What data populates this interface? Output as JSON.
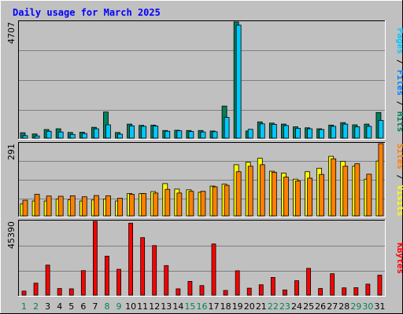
{
  "title": "Daily usage for March 2025",
  "colors": {
    "frame_bg": "#c0c0c0",
    "plot_bg": "#c0c0c0",
    "grid": "#7f7f7f",
    "title": "#0000ff",
    "hits": "#00805c",
    "files": "#00c8ff",
    "pages": "#00c8ff",
    "visits": "#ffff00",
    "sites": "#ff8000",
    "kbytes": "#ff0000",
    "weekday_tick": "#000000",
    "weekend_tick": "#00805c"
  },
  "chart_data": [
    {
      "type": "bar",
      "title": "Daily usage for March 2025",
      "categories": [
        "1",
        "2",
        "3",
        "4",
        "5",
        "6",
        "7",
        "8",
        "9",
        "10",
        "11",
        "12",
        "13",
        "14",
        "15",
        "16",
        "17",
        "18",
        "19",
        "20",
        "21",
        "22",
        "23",
        "24",
        "25",
        "26",
        "27",
        "28",
        "29",
        "30",
        "31"
      ],
      "weekend_days": [
        "1",
        "2",
        "8",
        "9",
        "15",
        "16",
        "22",
        "23",
        "29",
        "30"
      ],
      "ylabel_parts": [
        {
          "text": "Pages",
          "color": "#00c8ff"
        },
        {
          "text": " / ",
          "color": "#000000"
        },
        {
          "text": "Files",
          "color": "#0080ff"
        },
        {
          "text": " / ",
          "color": "#000000"
        },
        {
          "text": "Hits",
          "color": "#00805c"
        }
      ],
      "ymax_label": "4707",
      "ylim": [
        0,
        4707
      ],
      "series": [
        {
          "name": "Hits",
          "color": "#00805c",
          "values": [
            220,
            170,
            350,
            380,
            230,
            240,
            440,
            1060,
            230,
            570,
            520,
            530,
            310,
            320,
            310,
            310,
            290,
            1300,
            4707,
            290,
            660,
            610,
            570,
            460,
            420,
            380,
            530,
            630,
            540,
            570,
            1040
          ]
        },
        {
          "name": "Files",
          "color": "#00c8ff",
          "values": [
            100,
            90,
            280,
            250,
            150,
            190,
            380,
            540,
            160,
            500,
            480,
            490,
            280,
            300,
            270,
            250,
            260,
            840,
            4580,
            360,
            580,
            560,
            510,
            400,
            380,
            350,
            480,
            570,
            460,
            480,
            720
          ]
        },
        {
          "name": "Pages",
          "color": "#00c8ff",
          "values": [
            0,
            0,
            0,
            0,
            0,
            0,
            0,
            0,
            0,
            0,
            0,
            0,
            0,
            0,
            0,
            0,
            0,
            0,
            0,
            0,
            0,
            0,
            0,
            0,
            0,
            0,
            0,
            0,
            0,
            0,
            0
          ]
        }
      ]
    },
    {
      "type": "bar",
      "categories": [
        "1",
        "2",
        "3",
        "4",
        "5",
        "6",
        "7",
        "8",
        "9",
        "10",
        "11",
        "12",
        "13",
        "14",
        "15",
        "16",
        "17",
        "18",
        "19",
        "20",
        "21",
        "22",
        "23",
        "24",
        "25",
        "26",
        "27",
        "28",
        "29",
        "30",
        "31"
      ],
      "ylabel_parts": [
        {
          "text": "Sites",
          "color": "#ff8000"
        },
        {
          "text": " / ",
          "color": "#000000"
        },
        {
          "text": "Visits",
          "color": "#ffff00"
        }
      ],
      "ymax_label": "291",
      "ylim": [
        0,
        291
      ],
      "series": [
        {
          "name": "Visits",
          "color": "#ffff00",
          "values": [
            48,
            60,
            60,
            68,
            65,
            60,
            64,
            68,
            60,
            90,
            90,
            98,
            130,
            108,
            105,
            95,
            120,
            128,
            206,
            216,
            232,
            180,
            172,
            148,
            178,
            192,
            240,
            220,
            200,
            148,
            221
          ]
        },
        {
          "name": "Sites",
          "color": "#ff8000",
          "values": [
            63,
            87,
            80,
            79,
            81,
            77,
            82,
            81,
            71,
            87,
            90,
            92,
            107,
            92,
            99,
            99,
            117,
            123,
            178,
            200,
            206,
            176,
            156,
            141,
            152,
            167,
            230,
            200,
            210,
            168,
            291
          ]
        }
      ]
    },
    {
      "type": "bar",
      "categories": [
        "1",
        "2",
        "3",
        "4",
        "5",
        "6",
        "7",
        "8",
        "9",
        "10",
        "11",
        "12",
        "13",
        "14",
        "15",
        "16",
        "17",
        "18",
        "19",
        "20",
        "21",
        "22",
        "23",
        "24",
        "25",
        "26",
        "27",
        "28",
        "29",
        "30",
        "31"
      ],
      "ylabel_parts": [
        {
          "text": "KBytes",
          "color": "#ff0000"
        }
      ],
      "ymax_label": "45390",
      "ylim": [
        0,
        45390
      ],
      "series": [
        {
          "name": "KBytes",
          "color": "#ff0000",
          "values": [
            2500,
            7400,
            18500,
            4100,
            3900,
            15100,
            45390,
            24000,
            15900,
            44300,
            35400,
            30500,
            18200,
            3900,
            8500,
            5900,
            31500,
            2900,
            15000,
            4300,
            6400,
            10900,
            3200,
            8900,
            16500,
            4100,
            13200,
            4500,
            4600,
            6800,
            12300
          ]
        }
      ]
    }
  ]
}
